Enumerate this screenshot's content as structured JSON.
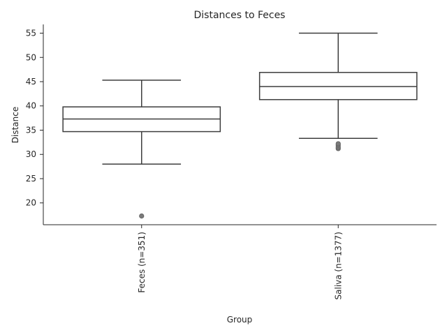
{
  "chart_data": {
    "type": "box",
    "title": "Distances to Feces",
    "xlabel": "Group",
    "ylabel": "Distance",
    "ylim": [
      15.5,
      56.8
    ],
    "yticks": [
      20,
      25,
      30,
      35,
      40,
      45,
      50,
      55
    ],
    "grid": false,
    "categories": [
      "Feces (n=351)",
      "Saliva (n=1377)"
    ],
    "boxes": [
      {
        "category": "Feces (n=351)",
        "whisker_low": 28.0,
        "q1": 34.7,
        "median": 37.3,
        "q3": 39.8,
        "whisker_high": 45.3,
        "outliers": [
          17.3
        ]
      },
      {
        "category": "Saliva (n=1377)",
        "whisker_low": 33.3,
        "q1": 41.3,
        "median": 44.0,
        "q3": 46.9,
        "whisker_high": 55.0,
        "outliers": [
          31.2,
          31.5,
          31.9,
          32.2
        ]
      }
    ]
  }
}
